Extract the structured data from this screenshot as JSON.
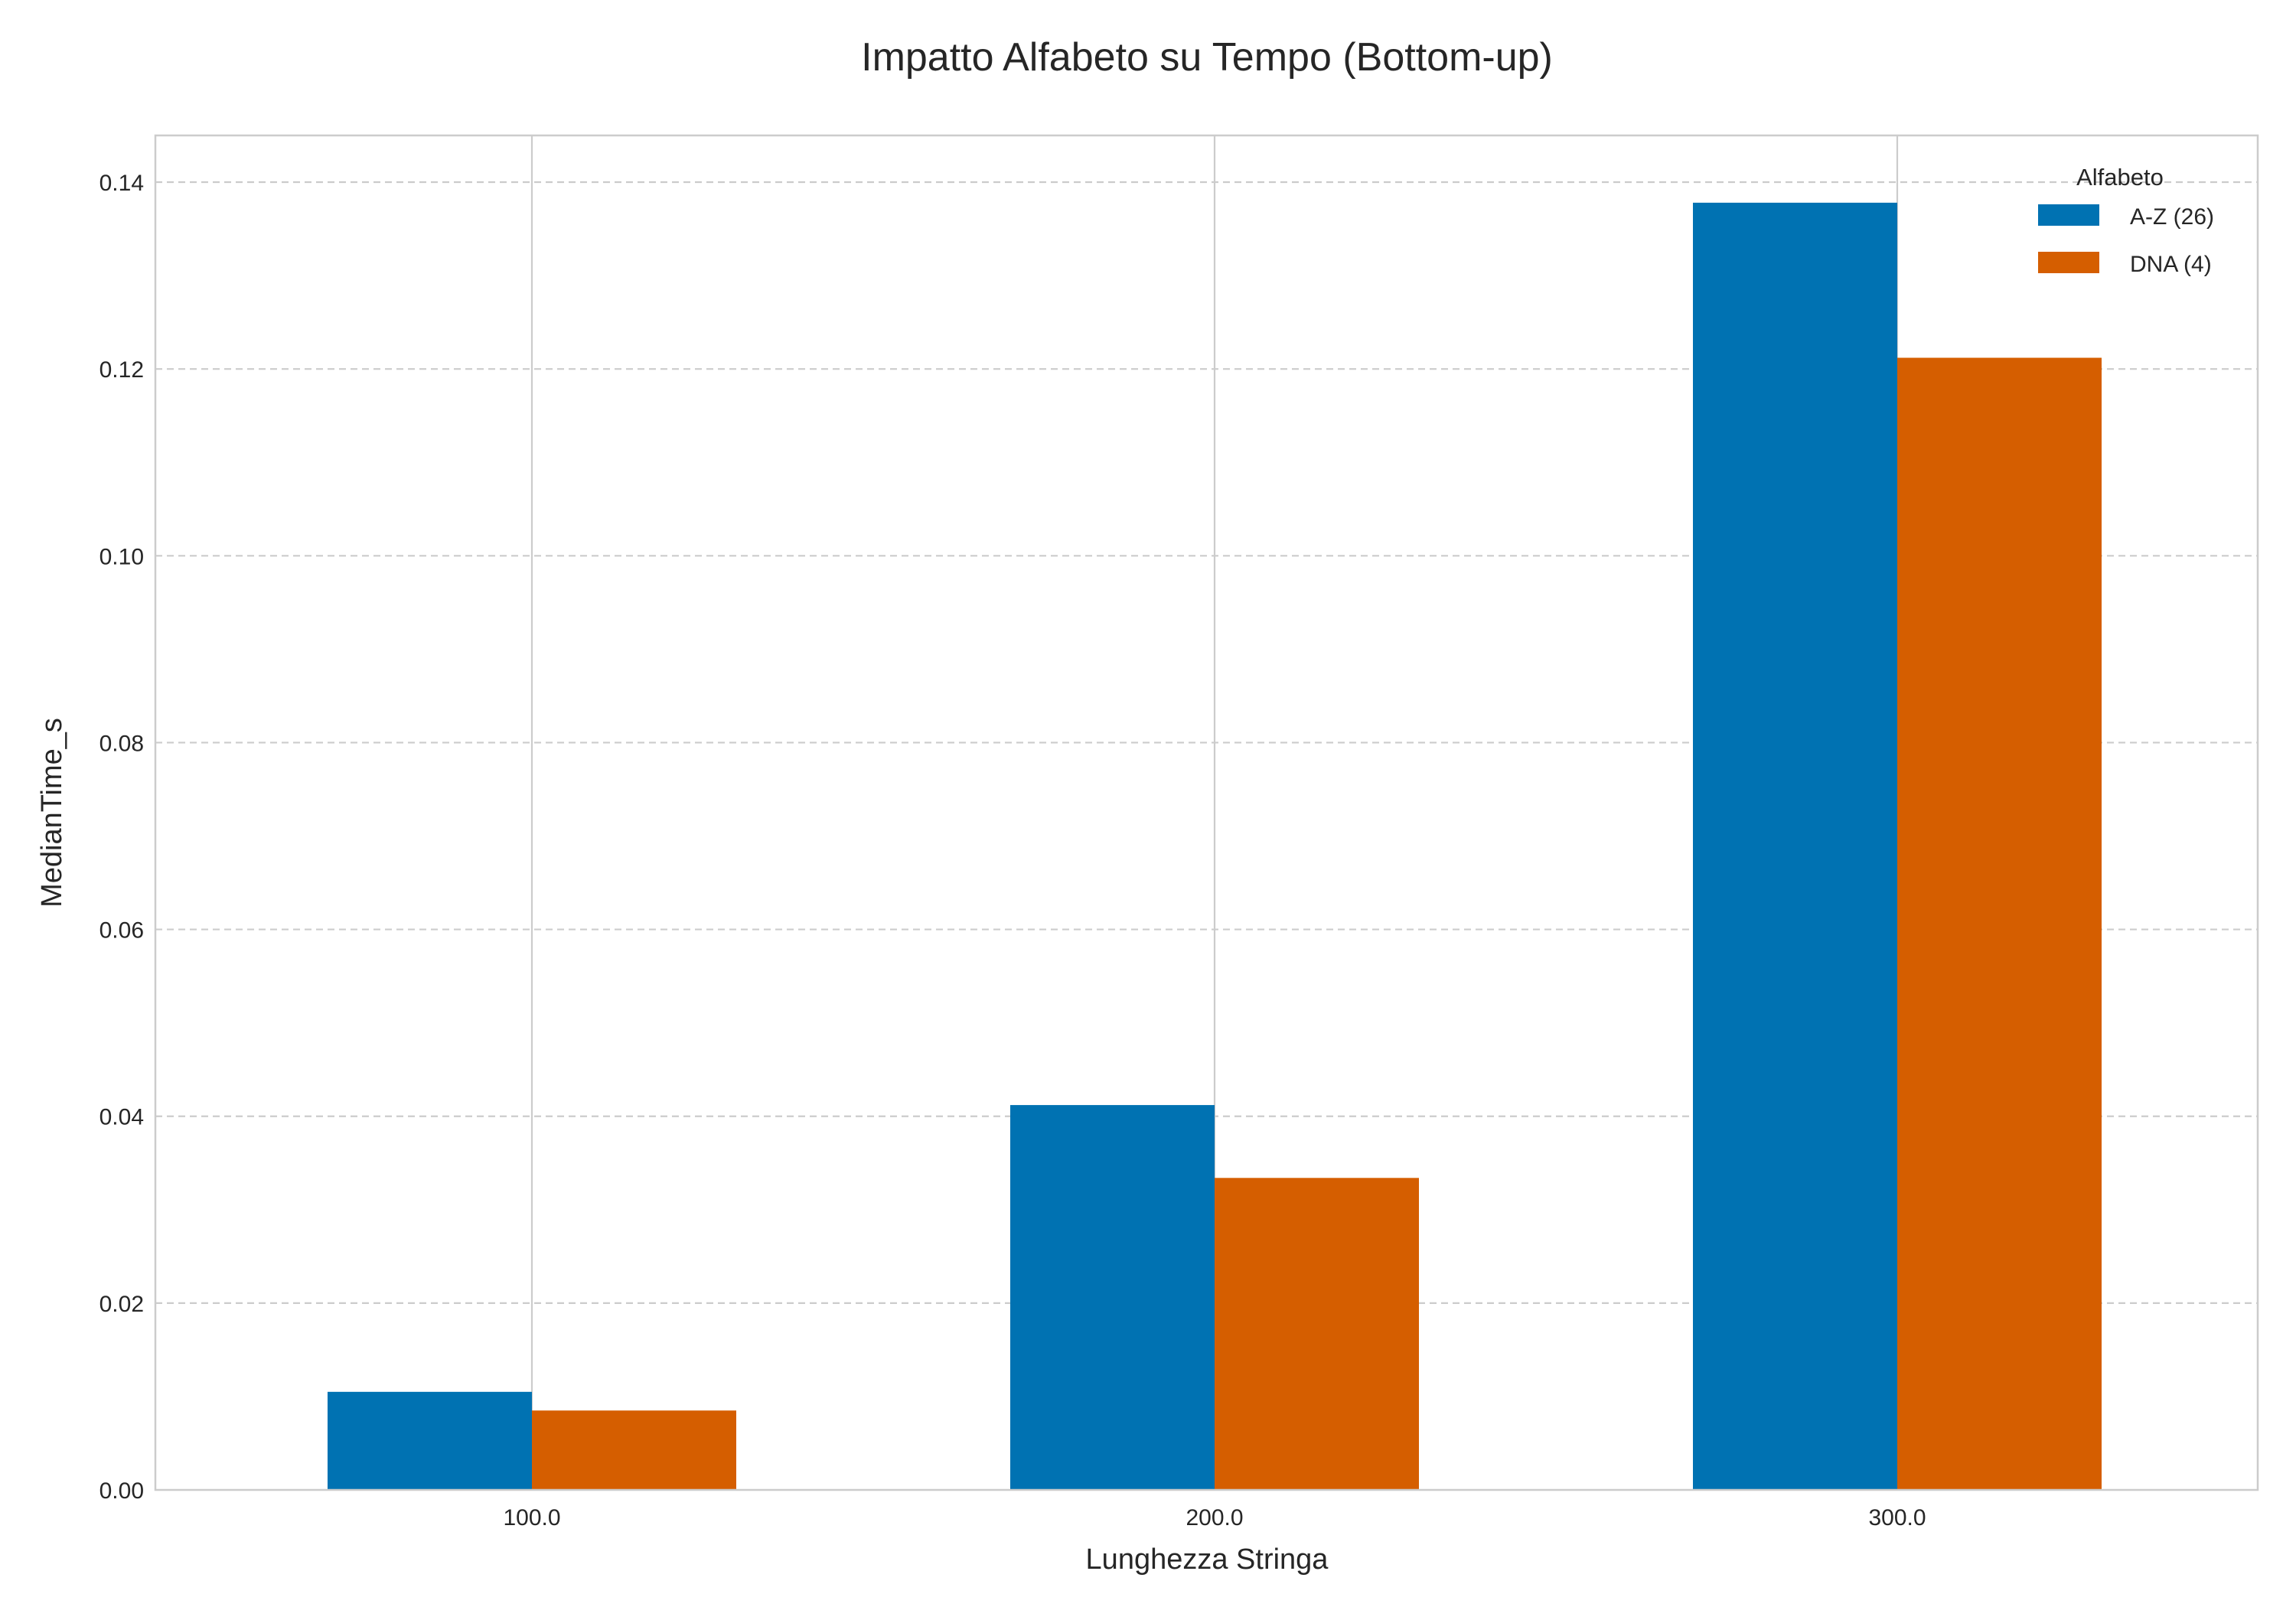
{
  "chart_data": {
    "type": "bar",
    "title": "Impatto Alfabeto su Tempo (Bottom-up)",
    "xlabel": "Lunghezza Stringa",
    "ylabel": "MedianTime_s",
    "categories": [
      "100.0",
      "200.0",
      "300.0"
    ],
    "series": [
      {
        "name": "A-Z (26)",
        "color": "#0072B2",
        "values": [
          0.0105,
          0.0412,
          0.1378
        ]
      },
      {
        "name": "DNA (4)",
        "color": "#D55E00",
        "values": [
          0.0085,
          0.0334,
          0.1212
        ]
      }
    ],
    "ylim": [
      0,
      0.145
    ],
    "yticks": [
      0.0,
      0.02,
      0.04,
      0.06,
      0.08,
      0.1,
      0.12,
      0.14
    ],
    "ytick_labels": [
      "0.00",
      "0.02",
      "0.04",
      "0.06",
      "0.08",
      "0.10",
      "0.12",
      "0.14"
    ],
    "grid": {
      "y": "dashed",
      "x": "solid"
    },
    "legend": {
      "title": "Alfabeto",
      "placement": "top-right"
    }
  }
}
